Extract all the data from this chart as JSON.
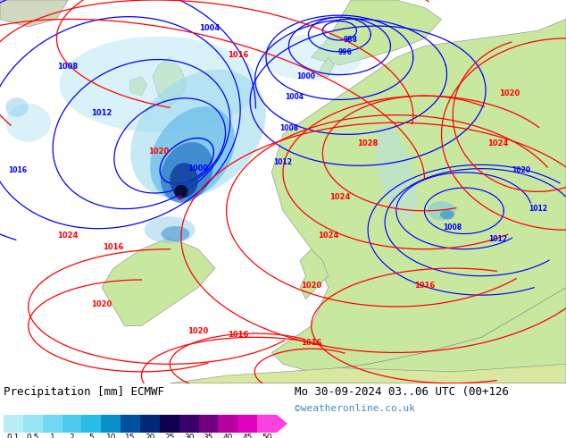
{
  "title_left": "Precipitation [mm] ECMWF",
  "title_right": "Mo 30-09-2024 03..06 UTC (00+126",
  "credit": "©weatheronline.co.uk",
  "colorbar_values": [
    0.1,
    0.5,
    1,
    2,
    5,
    10,
    15,
    20,
    25,
    30,
    35,
    40,
    45,
    50
  ],
  "colorbar_colors": [
    "#b8eef8",
    "#96e4f4",
    "#70d8f0",
    "#4ccaec",
    "#28bce8",
    "#0890c8",
    "#0050a0",
    "#002878",
    "#100050",
    "#380068",
    "#700080",
    "#b800a0",
    "#e000c0",
    "#ff40e0"
  ],
  "bg_map_ocean": "#ddeef8",
  "bg_map_land_europe": "#c8e8a0",
  "bg_map_land_dark": "#b0c890",
  "credit_color": "#4488cc",
  "title_fontsize": 9,
  "label_fontsize": 7,
  "cb_label_fontsize": 7
}
